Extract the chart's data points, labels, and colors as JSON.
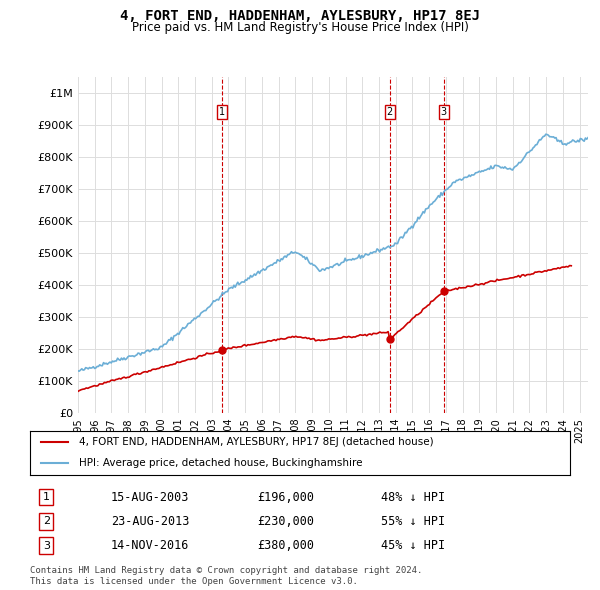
{
  "title": "4, FORT END, HADDENHAM, AYLESBURY, HP17 8EJ",
  "subtitle": "Price paid vs. HM Land Registry's House Price Index (HPI)",
  "ylabel_top": "£1M",
  "yticks": [
    0,
    100000,
    200000,
    300000,
    400000,
    500000,
    600000,
    700000,
    800000,
    900000,
    1000000
  ],
  "ytick_labels": [
    "£0",
    "£100K",
    "£200K",
    "£300K",
    "£400K",
    "£500K",
    "£600K",
    "£700K",
    "£800K",
    "£900K",
    "£1M"
  ],
  "xlim_start": 1995.0,
  "xlim_end": 2025.5,
  "ylim": [
    0,
    1050000
  ],
  "hpi_color": "#6baed6",
  "price_color": "#cc0000",
  "transaction_color": "#cc0000",
  "vline_color": "#cc0000",
  "sale_dates": [
    2003.622,
    2013.644,
    2016.872
  ],
  "sale_prices": [
    196000,
    230000,
    380000
  ],
  "sale_labels": [
    "1",
    "2",
    "3"
  ],
  "legend_property": "4, FORT END, HADDENHAM, AYLESBURY, HP17 8EJ (detached house)",
  "legend_hpi": "HPI: Average price, detached house, Buckinghamshire",
  "table_rows": [
    [
      "1",
      "15-AUG-2003",
      "£196,000",
      "48% ↓ HPI"
    ],
    [
      "2",
      "23-AUG-2013",
      "£230,000",
      "55% ↓ HPI"
    ],
    [
      "3",
      "14-NOV-2016",
      "£380,000",
      "45% ↓ HPI"
    ]
  ],
  "footnote": "Contains HM Land Registry data © Crown copyright and database right 2024.\nThis data is licensed under the Open Government Licence v3.0.",
  "background_color": "#ffffff",
  "grid_color": "#dddddd"
}
